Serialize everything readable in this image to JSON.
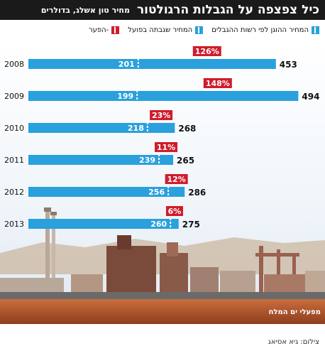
{
  "header": {
    "title": "כיל צפצפה על הגבלות הרגולטור",
    "subtitle": "מחיר טון אשלג, בדולרים"
  },
  "legend": {
    "items": [
      {
        "label": "המחיר ההוגן לפי רשות ההגבלים",
        "color": "#2aa0dc"
      },
      {
        "label": "המחיר שגבתה בפועל",
        "color": "#2aa0dc"
      },
      {
        "label": "-הפער",
        "color": "#d01c2a"
      }
    ]
  },
  "photo_source": "מפעלי ים המלח",
  "credit": "צילום: גיא אסיאג",
  "chart_data": {
    "type": "bar",
    "categories": [
      "2008",
      "2009",
      "2010",
      "2011",
      "2012",
      "2013"
    ],
    "series": [
      {
        "name": "המחיר ההוגן לפי רשות ההגבלים",
        "values": [
          201,
          199,
          218,
          239,
          256,
          260
        ]
      },
      {
        "name": "המחיר שגבתה בפועל",
        "values": [
          453,
          494,
          268,
          265,
          286,
          275
        ]
      }
    ],
    "gap_labels": [
      "126%",
      "148%",
      "23%",
      "11%",
      "12%",
      "6%"
    ],
    "colors": {
      "bar": "#2aa0dc",
      "gap": "#d01c2a",
      "marker": "#ffffff"
    }
  }
}
